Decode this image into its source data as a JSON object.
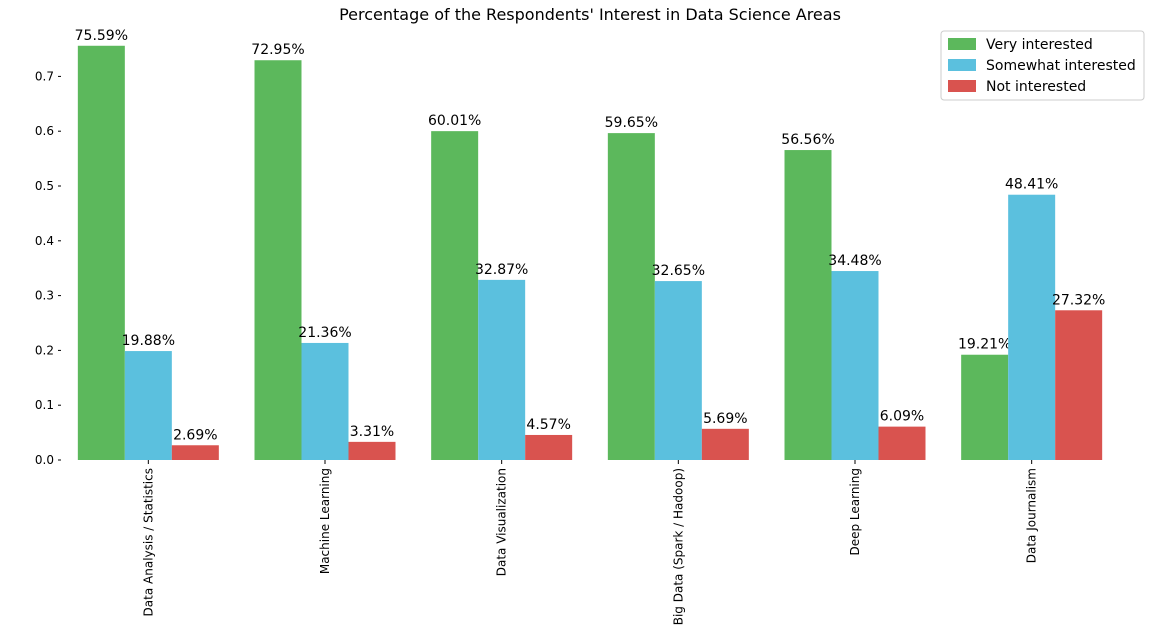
{
  "chart_data": {
    "type": "bar",
    "title": "Percentage of the Respondents' Interest in Data Science Areas",
    "xlabel": "",
    "ylabel": "",
    "categories": [
      "Data Analysis / Statistics",
      "Machine Learning",
      "Data Visualization",
      "Big Data (Spark / Hadoop)",
      "Deep Learning",
      "Data Journalism"
    ],
    "series": [
      {
        "name": "Very interested",
        "color": "#5cb85c",
        "values": [
          0.7559,
          0.7295,
          0.6001,
          0.5965,
          0.5656,
          0.1921
        ],
        "labels": [
          "75.59%",
          "72.95%",
          "60.01%",
          "59.65%",
          "56.56%",
          "19.21%"
        ]
      },
      {
        "name": "Somewhat interested",
        "color": "#5bc0de",
        "values": [
          0.1988,
          0.2136,
          0.3287,
          0.3265,
          0.3448,
          0.4841
        ],
        "labels": [
          "19.88%",
          "21.36%",
          "32.87%",
          "32.65%",
          "34.48%",
          "48.41%"
        ]
      },
      {
        "name": "Not interested",
        "color": "#d9534f",
        "values": [
          0.0269,
          0.0331,
          0.0457,
          0.0569,
          0.0609,
          0.2732
        ],
        "labels": [
          "2.69%",
          "3.31%",
          "4.57%",
          "5.69%",
          "6.09%",
          "27.32%"
        ]
      }
    ],
    "yticks": [
      "0.0",
      "0.1",
      "0.2",
      "0.3",
      "0.4",
      "0.5",
      "0.6",
      "0.7"
    ],
    "ylim": [
      0,
      0.7937
    ],
    "grid": false,
    "legend_position": "top-right",
    "x_tick_rotation": "vertical"
  }
}
